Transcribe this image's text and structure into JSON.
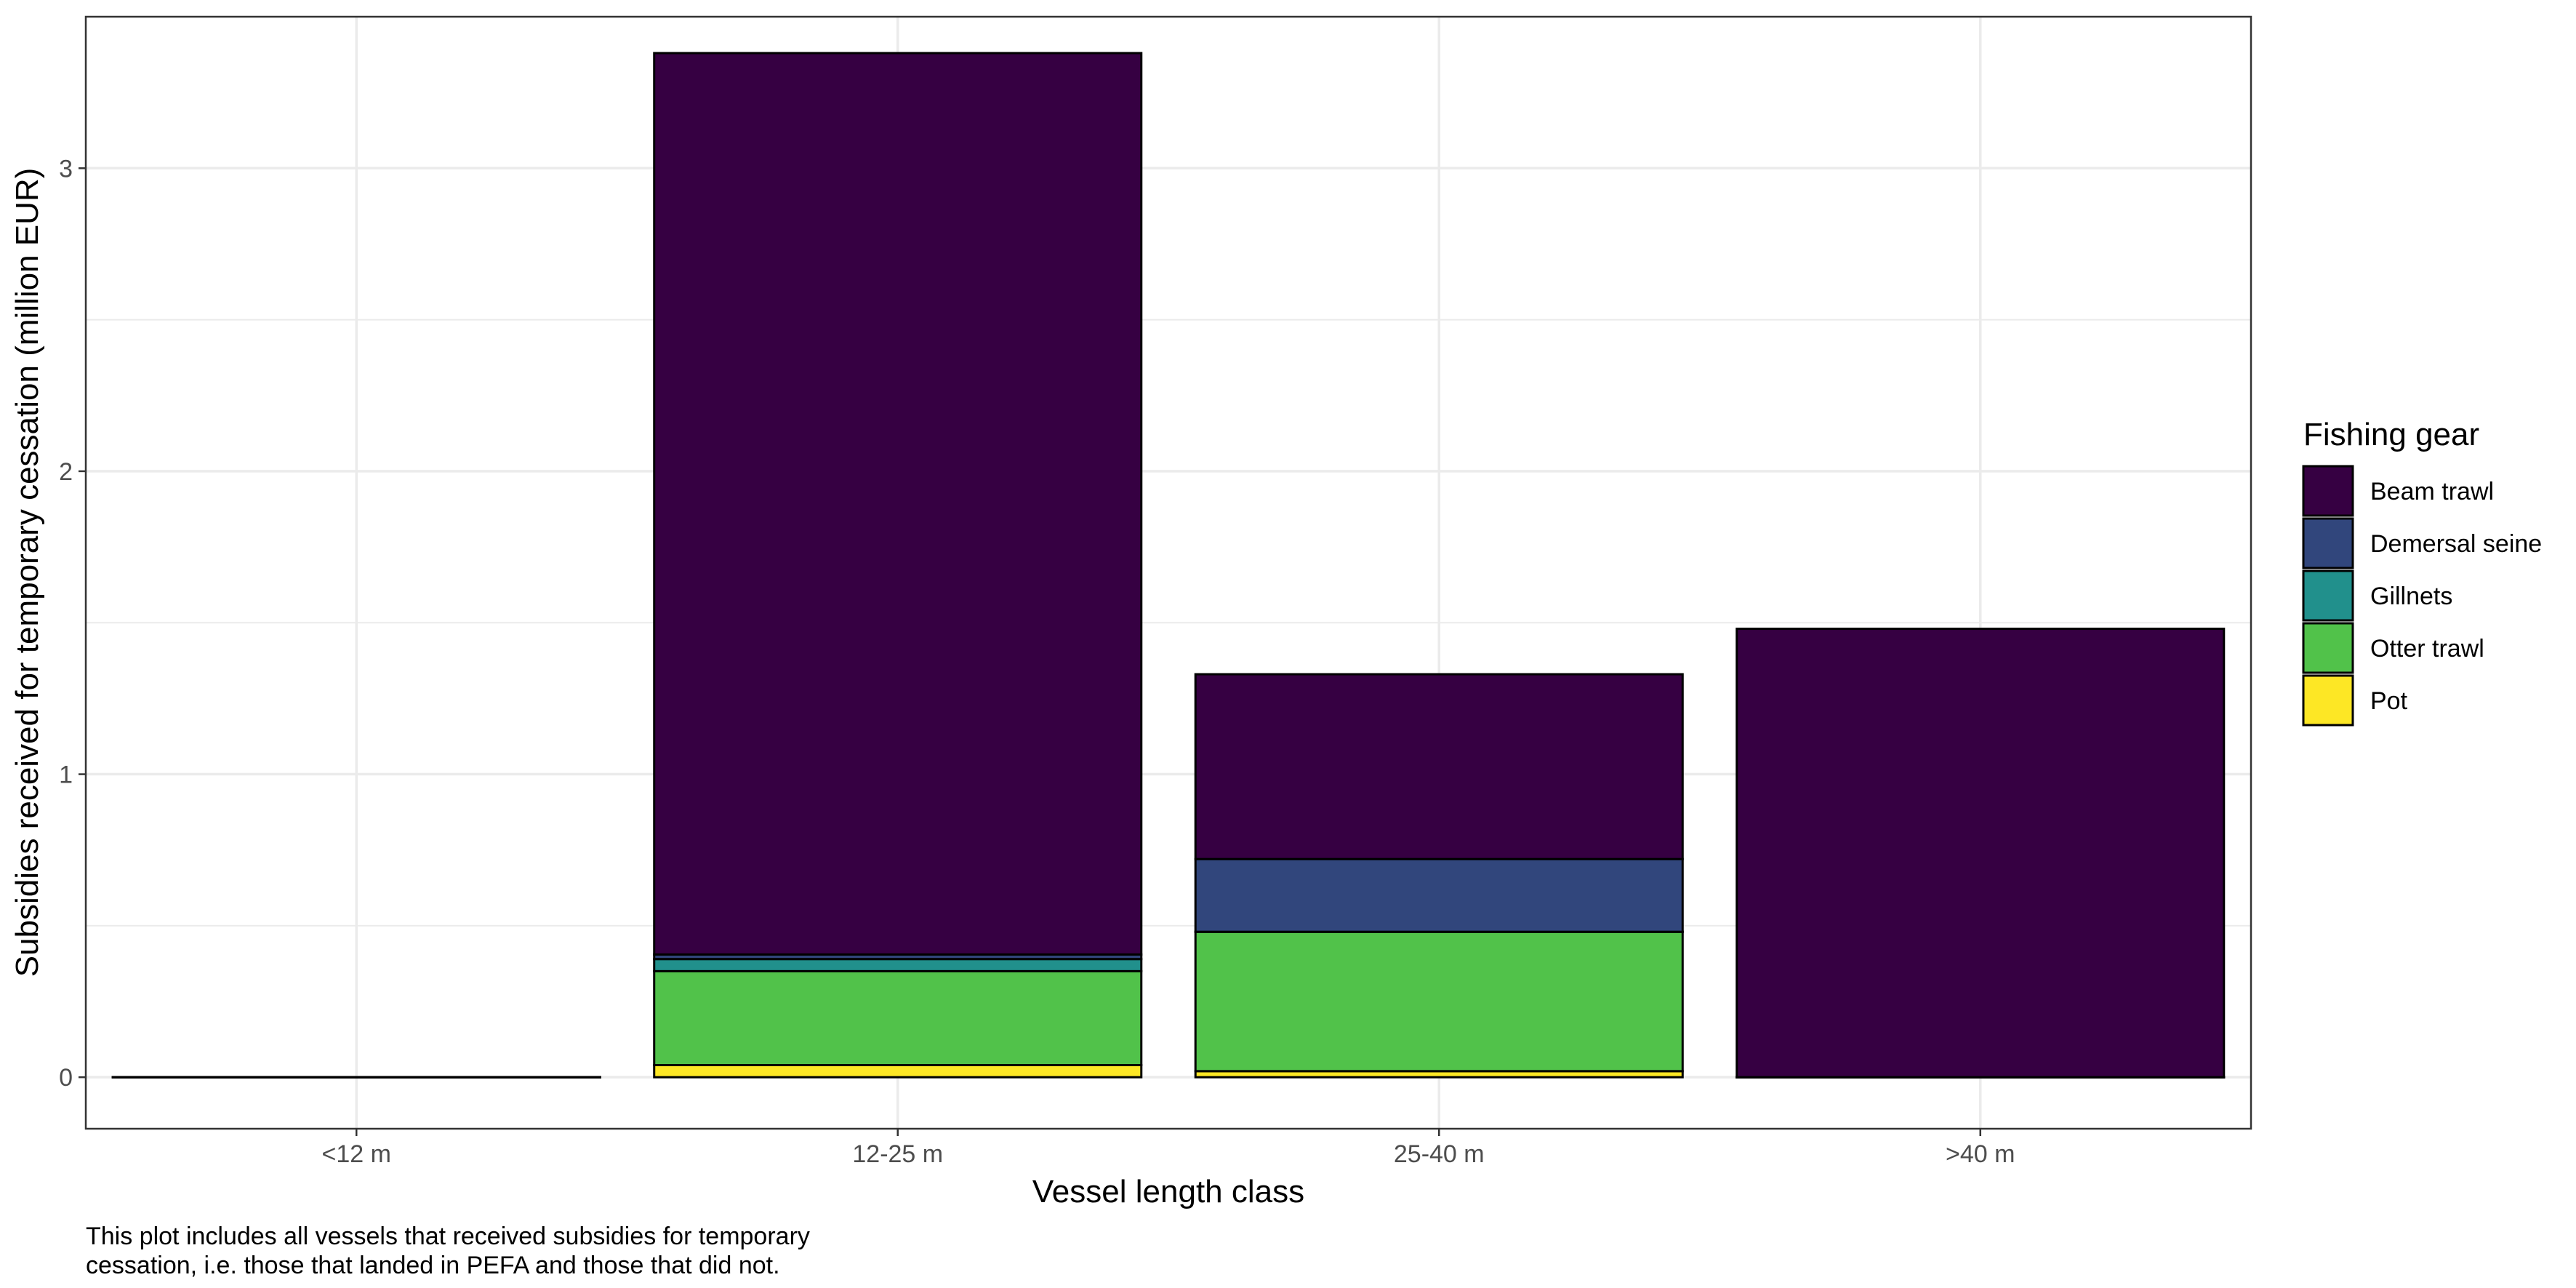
{
  "chart_data": {
    "type": "bar",
    "stacked": true,
    "categories": [
      "<12 m",
      "12-25 m",
      "25-40 m",
      ">40 m"
    ],
    "series": [
      {
        "name": "Pot",
        "color": "#FDE725",
        "values": [
          0.0,
          0.04,
          0.02,
          0.0
        ]
      },
      {
        "name": "Otter trawl",
        "color": "#51C24A",
        "values": [
          0.0,
          0.31,
          0.46,
          0.0
        ]
      },
      {
        "name": "Gillnets",
        "color": "#21908C",
        "values": [
          0.0,
          0.04,
          0.0,
          0.0
        ]
      },
      {
        "name": "Demersal seine",
        "color": "#31467C",
        "values": [
          0.0,
          0.015,
          0.24,
          0.0
        ]
      },
      {
        "name": "Beam trawl",
        "color": "#360042",
        "values": [
          0.0,
          2.975,
          0.61,
          1.48
        ]
      }
    ],
    "totals": [
      0.0,
      3.38,
      1.33,
      1.48
    ],
    "xlabel": "Vessel length class",
    "ylabel": "Subsidies received for temporary cessation (million EUR)",
    "ylim": [
      -0.17,
      3.5
    ],
    "yticks": [
      "0",
      "1",
      "2",
      "3"
    ],
    "grid": true,
    "legend": {
      "title": "Fishing gear",
      "position": "right",
      "entries": [
        "Beam trawl",
        "Demersal seine",
        "Gillnets",
        "Otter trawl",
        "Pot"
      ]
    }
  },
  "caption": {
    "line1": "This plot includes all vessels that received subsidies for temporary",
    "line2": "cessation, i.e. those that landed in PEFA and those that did not."
  }
}
